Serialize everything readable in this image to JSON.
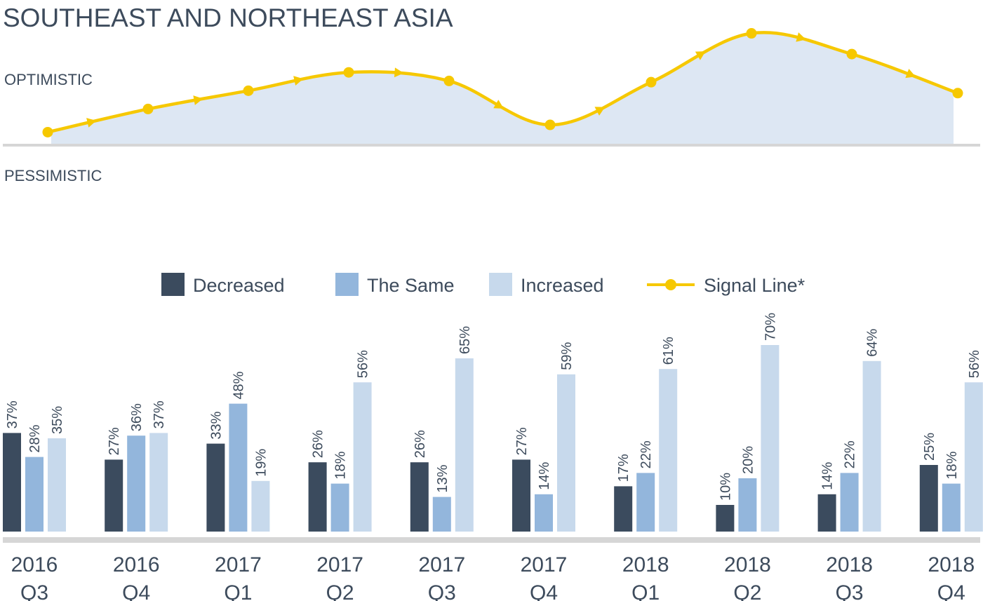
{
  "chart_data": {
    "title": "SOUTHEAST AND NORTHEAST ASIA",
    "type": "bar",
    "signal_axis": {
      "top_label": "OPTIMISTIC",
      "bottom_label": "PESSIMISTIC"
    },
    "categories": [
      {
        "year": "2016",
        "quarter": "Q3"
      },
      {
        "year": "2016",
        "quarter": "Q4"
      },
      {
        "year": "2017",
        "quarter": "Q1"
      },
      {
        "year": "2017",
        "quarter": "Q2"
      },
      {
        "year": "2017",
        "quarter": "Q3"
      },
      {
        "year": "2017",
        "quarter": "Q4"
      },
      {
        "year": "2018",
        "quarter": "Q1"
      },
      {
        "year": "2018",
        "quarter": "Q2"
      },
      {
        "year": "2018",
        "quarter": "Q3"
      },
      {
        "year": "2018",
        "quarter": "Q4"
      }
    ],
    "series": [
      {
        "name": "Decreased",
        "color": "#3b4b5e",
        "values": [
          37,
          27,
          33,
          26,
          26,
          27,
          17,
          10,
          14,
          25
        ]
      },
      {
        "name": "The Same",
        "color": "#93b6dc",
        "values": [
          28,
          36,
          48,
          18,
          13,
          14,
          22,
          20,
          22,
          18
        ]
      },
      {
        "name": "Increased",
        "color": "#c7d9ec",
        "values": [
          35,
          37,
          19,
          56,
          65,
          59,
          61,
          70,
          64,
          56
        ]
      }
    ],
    "signal_line": {
      "name": "Signal Line*",
      "color": "#f6c800",
      "fill_color": "#dde7f3",
      "values": [
        -2,
        17,
        32,
        47,
        40,
        4,
        39,
        79,
        62,
        30
      ]
    },
    "value_suffix": "%",
    "ylim": [
      0,
      75
    ],
    "legend_position": "top-center",
    "grid": false
  }
}
